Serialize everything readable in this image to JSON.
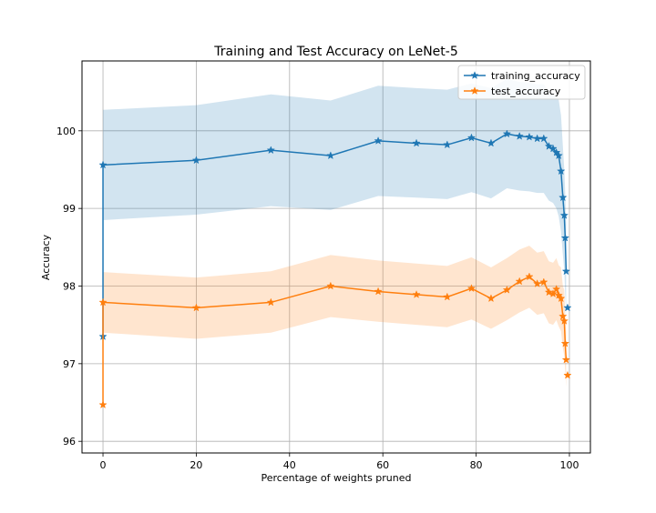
{
  "chart_data": {
    "type": "line",
    "title": "Training and Test Accuracy on LeNet-5",
    "xlabel": "Percentage of weights pruned",
    "ylabel": "Accuracy",
    "xlim": [
      -4.5,
      104.5
    ],
    "ylim": [
      95.85,
      100.9
    ],
    "xticks": [
      0,
      20,
      40,
      60,
      80,
      100
    ],
    "yticks": [
      96,
      97,
      98,
      99,
      100
    ],
    "grid": true,
    "legend_position": "top-right",
    "series": [
      {
        "name": "training_accuracy",
        "color": "#1f77b4",
        "band_color": "#1f77b4",
        "x": [
          0,
          0,
          20,
          36,
          48.8,
          59,
          67.2,
          73.8,
          79,
          83.2,
          86.6,
          89.3,
          91.4,
          93.1,
          94.5,
          95.6,
          96.5,
          97.2,
          97.7,
          98.2,
          98.6,
          98.9,
          99.1,
          99.3
        ],
        "y": [
          97.35,
          99.56,
          99.62,
          99.75,
          99.68,
          99.87,
          99.84,
          99.82,
          99.91,
          99.84,
          99.96,
          99.93,
          99.92,
          99.9,
          99.9,
          99.8,
          99.77,
          99.72,
          99.68,
          99.48,
          99.14,
          98.91,
          98.62,
          98.19
        ],
        "y_lower": [
          97.0,
          98.85,
          98.92,
          99.03,
          98.98,
          99.16,
          99.14,
          99.12,
          99.21,
          99.13,
          99.26,
          99.23,
          99.22,
          99.2,
          99.2,
          99.1,
          99.07,
          99.0,
          98.9,
          98.7,
          98.4,
          98.2,
          97.9,
          97.6
        ],
        "y_upper": [
          97.7,
          100.27,
          100.33,
          100.47,
          100.39,
          100.58,
          100.55,
          100.53,
          100.61,
          100.55,
          100.67,
          100.63,
          100.62,
          100.6,
          100.6,
          100.5,
          100.47,
          100.44,
          100.4,
          100.2,
          99.8,
          99.5,
          99.2,
          98.8
        ]
      },
      {
        "name": "test_accuracy",
        "color": "#ff7f0e",
        "band_color": "#ff7f0e",
        "x": [
          0,
          0,
          20,
          36,
          48.8,
          59,
          67.2,
          73.8,
          79,
          83.2,
          86.6,
          89.3,
          91.4,
          93.1,
          94.5,
          95.6,
          96.5,
          97.2,
          97.7,
          98.2,
          98.6,
          98.9,
          99.1,
          99.3
        ],
        "y": [
          96.47,
          97.79,
          97.72,
          97.79,
          98.0,
          97.93,
          97.89,
          97.86,
          97.97,
          97.84,
          97.95,
          98.06,
          98.12,
          98.03,
          98.05,
          97.92,
          97.9,
          97.96,
          97.88,
          97.84,
          97.61,
          97.55,
          97.26,
          97.05
        ],
        "y_lower": [
          96.3,
          97.4,
          97.32,
          97.4,
          97.6,
          97.54,
          97.5,
          97.47,
          97.57,
          97.45,
          97.56,
          97.66,
          97.72,
          97.63,
          97.65,
          97.52,
          97.5,
          97.56,
          97.48,
          97.42,
          97.2,
          97.1,
          96.9,
          96.7
        ],
        "y_upper": [
          96.7,
          98.18,
          98.11,
          98.19,
          98.4,
          98.33,
          98.29,
          98.26,
          98.37,
          98.24,
          98.36,
          98.47,
          98.52,
          98.43,
          98.45,
          98.32,
          98.3,
          98.36,
          98.27,
          98.24,
          98.0,
          97.95,
          97.65,
          97.4
        ]
      }
    ],
    "extra_points": {
      "training_accuracy": [
        [
          99.6,
          97.72
        ]
      ],
      "test_accuracy": [
        [
          99.6,
          96.85
        ]
      ]
    }
  }
}
